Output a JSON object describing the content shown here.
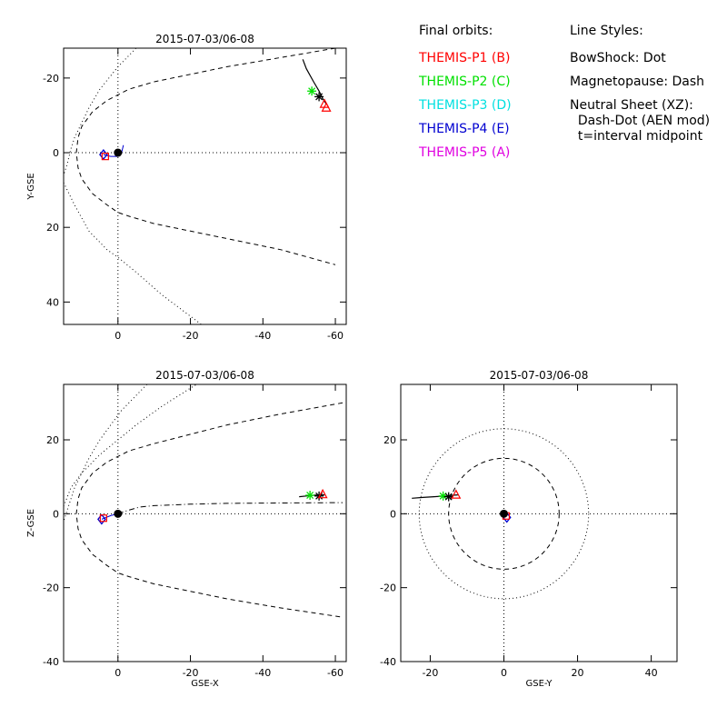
{
  "legend": {
    "orbits_title": "Final orbits:",
    "orbits": [
      {
        "label": "THEMIS-P1 (B)",
        "color": "#ff0000"
      },
      {
        "label": "THEMIS-P2 (C)",
        "color": "#00e000"
      },
      {
        "label": "THEMIS-P3 (D)",
        "color": "#00e0e0"
      },
      {
        "label": "THEMIS-P4 (E)",
        "color": "#0000d0"
      },
      {
        "label": "THEMIS-P5 (A)",
        "color": "#e000e0"
      }
    ],
    "styles_title": "Line Styles:",
    "styles": [
      "BowShock: Dot",
      "Magnetopause: Dash",
      "Neutral Sheet (XZ):",
      "  Dash-Dot (AEN mod)",
      "  t=interval midpoint"
    ]
  },
  "chart_data": [
    {
      "id": "xy",
      "type": "scatter",
      "title": "2015-07-03/06-08",
      "xlabel": "",
      "ylabel": "Y-GSE",
      "xlim": [
        15,
        -63
      ],
      "ylim": [
        -28,
        46
      ],
      "xticks": [
        0,
        -20,
        -40,
        -60
      ],
      "yticks": [
        -20,
        0,
        20,
        40
      ],
      "grid": "dotted zero lines",
      "boundaries": [
        {
          "name": "bowshock",
          "style": "dot",
          "x": [
            -23,
            -17,
            -10,
            -5,
            0,
            5,
            8,
            10,
            12,
            13,
            14,
            15
          ],
          "y": [
            -46,
            -38,
            -33,
            -28,
            -23,
            -17,
            -12,
            -8,
            -4,
            -1,
            3,
            6
          ]
        },
        {
          "name": "bowshock-lower",
          "style": "dot",
          "x": [
            15,
            12,
            8,
            3,
            0,
            -5,
            -12,
            -23
          ],
          "y": [
            8,
            14,
            21,
            26,
            28,
            32,
            38,
            46
          ]
        },
        {
          "name": "magnetopause",
          "style": "dash",
          "x": [
            -60,
            -45,
            -30,
            -20,
            -10,
            -3,
            3,
            7,
            10,
            11,
            11.5,
            11,
            10,
            7,
            3,
            0,
            -3,
            -10,
            -20,
            -30,
            -45,
            -60
          ],
          "y": [
            -28,
            -25.5,
            -23,
            -21,
            -19,
            -17,
            -14,
            -11,
            -7,
            -4,
            0,
            4,
            7,
            11,
            14,
            16,
            17,
            19,
            21,
            23,
            26,
            30
          ]
        }
      ],
      "track": {
        "x": [
          -51,
          -52,
          -54,
          -55.5,
          -56.5,
          -57.5
        ],
        "y": [
          -25,
          -22.5,
          -19,
          -16.5,
          -14.5,
          -13
        ]
      },
      "markers": [
        {
          "shape": "asterisk",
          "x": -53.5,
          "y": -16.5,
          "color": "#00e000"
        },
        {
          "shape": "asterisk",
          "x": -55.5,
          "y": -15,
          "color": "#000000"
        },
        {
          "shape": "triangle",
          "x": -57,
          "y": -13,
          "color": "#ff0000"
        },
        {
          "shape": "triangle",
          "x": -57.5,
          "y": -12,
          "color": "#ff0000"
        },
        {
          "shape": "diamond",
          "x": 4,
          "y": 0.5,
          "color": "#0000d0"
        },
        {
          "shape": "square",
          "x": 3.5,
          "y": 1,
          "color": "#ff0000"
        },
        {
          "shape": "circle",
          "x": 0,
          "y": 0,
          "color": "#000000"
        }
      ],
      "small_track": {
        "x": [
          4,
          2,
          0,
          -1,
          -1.5
        ],
        "y": [
          0.5,
          1,
          1,
          0,
          -2
        ]
      }
    },
    {
      "id": "xz",
      "type": "scatter",
      "title": "2015-07-03/06-08",
      "xlabel": "GSE-X",
      "ylabel": "Z-GSE",
      "xlim": [
        15,
        -63
      ],
      "ylim": [
        35,
        -40
      ],
      "xticks": [
        0,
        -20,
        -40,
        -60
      ],
      "yticks": [
        20,
        0,
        -20,
        -40
      ],
      "grid": "dotted zero lines",
      "boundaries": [
        {
          "name": "bowshock",
          "style": "dot",
          "x": [
            -8,
            -4,
            -1,
            2,
            5,
            8,
            10,
            12,
            13,
            14,
            15
          ],
          "y": [
            35,
            31,
            28,
            24,
            20,
            15,
            11,
            7,
            4,
            1,
            -2
          ]
        },
        {
          "name": "bowshock-lower",
          "style": "dot",
          "x": [
            15,
            13,
            10,
            5,
            0,
            -5,
            -12,
            -20,
            -30
          ],
          "y": [
            2,
            7,
            11,
            16,
            20,
            24,
            29,
            34,
            40
          ]
        },
        {
          "name": "magnetopause",
          "style": "dash",
          "x": [
            -62,
            -45,
            -30,
            -20,
            -10,
            -3,
            3,
            7,
            10,
            11,
            11.5,
            11,
            10,
            7,
            3,
            0,
            -3,
            -10,
            -20,
            -30,
            -45,
            -62
          ],
          "y": [
            30,
            27,
            24,
            21.5,
            19,
            17,
            14,
            11,
            7,
            4,
            0,
            -4,
            -7,
            -11,
            -14,
            -16,
            -17,
            -19,
            -21,
            -23,
            -25.5,
            -28
          ]
        },
        {
          "name": "neutral-sheet",
          "style": "dashdot",
          "x": [
            0,
            -3,
            -6,
            -10,
            -20,
            -30,
            -45,
            -62
          ],
          "y": [
            0,
            1,
            1.8,
            2.2,
            2.6,
            2.8,
            2.9,
            3
          ]
        }
      ],
      "track": {
        "x": [
          -50,
          -52,
          -54,
          -55.5,
          -57
        ],
        "y": [
          4.6,
          4.8,
          5,
          5.1,
          5.1
        ]
      },
      "markers": [
        {
          "shape": "asterisk",
          "x": -53,
          "y": 5,
          "color": "#00e000"
        },
        {
          "shape": "asterisk",
          "x": -55.5,
          "y": 4.8,
          "color": "#000000"
        },
        {
          "shape": "triangle",
          "x": -56.5,
          "y": 5.2,
          "color": "#ff0000"
        },
        {
          "shape": "diamond",
          "x": 4.5,
          "y": -1.5,
          "color": "#0000d0"
        },
        {
          "shape": "square",
          "x": 4,
          "y": -1.2,
          "color": "#ff0000"
        },
        {
          "shape": "circle",
          "x": 0,
          "y": 0,
          "color": "#000000"
        }
      ],
      "small_track": {
        "x": [
          4.5,
          2,
          0
        ],
        "y": [
          -1.5,
          -0.5,
          0
        ]
      }
    },
    {
      "id": "yz",
      "type": "scatter",
      "title": "2015-07-03/06-08",
      "xlabel": "GSE-Y",
      "ylabel": "",
      "xlim": [
        -28,
        47
      ],
      "ylim": [
        35,
        -40
      ],
      "xticks": [
        -20,
        0,
        20,
        40
      ],
      "yticks": [
        20,
        0,
        -20,
        -40
      ],
      "grid": "dotted zero lines",
      "circles": [
        {
          "name": "bowshock",
          "style": "dot",
          "r": 23
        },
        {
          "name": "magnetopause",
          "style": "dash",
          "r": 15
        }
      ],
      "track": {
        "x": [
          -25,
          -22,
          -19,
          -16,
          -14,
          -12.5
        ],
        "y": [
          4.2,
          4.4,
          4.6,
          4.8,
          5,
          5.1
        ]
      },
      "markers": [
        {
          "shape": "asterisk",
          "x": -16.5,
          "y": 4.8,
          "color": "#00e000"
        },
        {
          "shape": "asterisk",
          "x": -15,
          "y": 4.6,
          "color": "#000000"
        },
        {
          "shape": "triangle",
          "x": -13,
          "y": 5.1,
          "color": "#ff0000"
        },
        {
          "shape": "diamond",
          "x": 0.8,
          "y": -1,
          "color": "#0000d0"
        },
        {
          "shape": "square",
          "x": 0.6,
          "y": -0.6,
          "color": "#ff0000"
        },
        {
          "shape": "circle",
          "x": 0,
          "y": 0,
          "color": "#000000"
        }
      ]
    }
  ]
}
